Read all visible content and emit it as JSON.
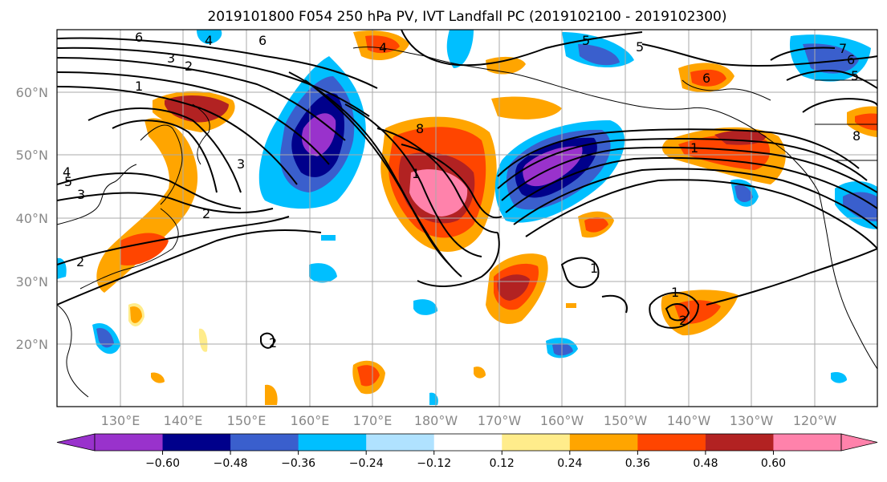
{
  "title": "2019101800 F054 250 hPa PV, IVT Landfall PC (2019102100 - 2019102300)",
  "map": {
    "lat_labels": [
      "60°N",
      "50°N",
      "40°N",
      "30°N",
      "20°N"
    ],
    "lon_labels": [
      "130°E",
      "140°E",
      "150°E",
      "160°E",
      "170°E",
      "180°W",
      "170°W",
      "160°W",
      "150°W",
      "140°W",
      "130°W",
      "120°W"
    ],
    "contour_labels": [
      "6",
      "3",
      "2",
      "1",
      "6",
      "5",
      "4",
      "5",
      "3",
      "2",
      "3",
      "2",
      "1",
      "8",
      "1",
      "1",
      "2",
      "1",
      "6",
      "5",
      "4",
      "4",
      "5",
      "6",
      "7",
      "8",
      "2"
    ]
  },
  "colorbar": {
    "colors": [
      "#9932cc",
      "#00008b",
      "#3a5fcd",
      "#00bfff",
      "#b0e2ff",
      "#ffffff",
      "#ffec8b",
      "#ffa500",
      "#ff4500",
      "#b22222",
      "#ff82ab"
    ],
    "extend_min_color": "#9932cc",
    "extend_max_color": "#ff82ab",
    "tick_labels": [
      "−0.60",
      "−0.48",
      "−0.36",
      "−0.24",
      "−0.12",
      "0.12",
      "0.24",
      "0.36",
      "0.48",
      "0.60"
    ]
  }
}
